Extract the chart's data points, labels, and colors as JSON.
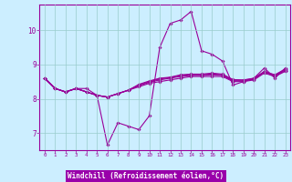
{
  "xlabel": "Windchill (Refroidissement éolien,°C)",
  "bg_color": "#cceeff",
  "line_color": "#990099",
  "xlabel_bg": "#9900aa",
  "xlabel_fg": "#ffffff",
  "grid_color": "#99cccc",
  "xlim": [
    -0.5,
    23.5
  ],
  "ylim": [
    6.5,
    10.75
  ],
  "xticks": [
    0,
    1,
    2,
    3,
    4,
    5,
    6,
    7,
    8,
    9,
    10,
    11,
    12,
    13,
    14,
    15,
    16,
    17,
    18,
    19,
    20,
    21,
    22,
    23
  ],
  "yticks": [
    7,
    8,
    9,
    10
  ],
  "lines": [
    [
      8.6,
      8.3,
      8.2,
      8.3,
      8.3,
      8.1,
      6.65,
      7.3,
      7.2,
      7.1,
      7.5,
      9.5,
      10.2,
      10.3,
      10.55,
      9.4,
      9.3,
      9.1,
      8.4,
      8.5,
      8.6,
      8.9,
      8.6,
      8.9
    ],
    [
      8.6,
      8.3,
      8.2,
      8.3,
      8.2,
      8.1,
      8.05,
      8.15,
      8.25,
      8.35,
      8.45,
      8.5,
      8.55,
      8.6,
      8.65,
      8.65,
      8.65,
      8.65,
      8.5,
      8.5,
      8.55,
      8.75,
      8.65,
      8.8
    ],
    [
      8.6,
      8.3,
      8.2,
      8.3,
      8.2,
      8.1,
      8.05,
      8.15,
      8.25,
      8.38,
      8.48,
      8.55,
      8.6,
      8.65,
      8.68,
      8.68,
      8.7,
      8.68,
      8.52,
      8.52,
      8.57,
      8.77,
      8.67,
      8.82
    ],
    [
      8.6,
      8.3,
      8.2,
      8.3,
      8.2,
      8.1,
      8.05,
      8.15,
      8.25,
      8.4,
      8.5,
      8.58,
      8.62,
      8.68,
      8.7,
      8.7,
      8.72,
      8.7,
      8.54,
      8.54,
      8.59,
      8.79,
      8.69,
      8.85
    ],
    [
      8.6,
      8.3,
      8.2,
      8.3,
      8.2,
      8.1,
      8.05,
      8.15,
      8.25,
      8.42,
      8.52,
      8.6,
      8.63,
      8.7,
      8.72,
      8.72,
      8.75,
      8.72,
      8.56,
      8.55,
      8.6,
      8.8,
      8.7,
      8.87
    ]
  ]
}
